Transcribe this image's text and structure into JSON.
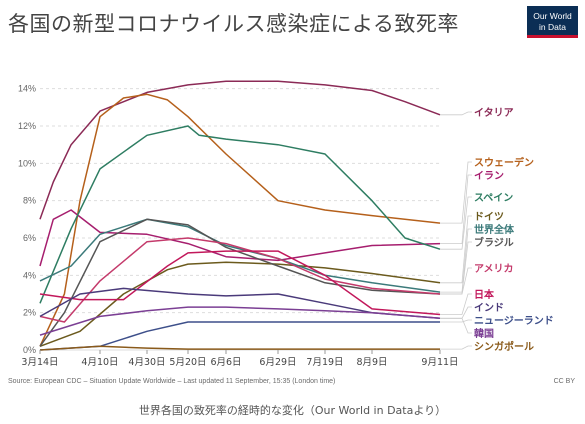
{
  "header": {
    "title": "各国の新型コロナウイルス感染症による致死率",
    "logo_line1": "Our World",
    "logo_line2": "in Data"
  },
  "footer": {
    "source": "Source: European CDC – Situation Update Worldwide – Last updated 11 September, 15:35 (London time)",
    "license": "CC BY",
    "caption": "世界各国の致死率の経時的な変化（Our World in Dataより）"
  },
  "chart_data": {
    "type": "line",
    "x_ticks": [
      "3月14日",
      "4月10日",
      "4月30日",
      "5月20日",
      "6月6日",
      "6月29日",
      "7月19日",
      "8月9日",
      "9月11日"
    ],
    "y_ticks": [
      "0%",
      "2%",
      "4%",
      "6%",
      "8%",
      "10%",
      "12%",
      "14%"
    ],
    "ylim": [
      0,
      15
    ],
    "grid": true,
    "series": [
      {
        "name": "イタリア",
        "color": "#8b2a56",
        "x": [
          "2020-03-14",
          "2020-03-20",
          "2020-03-28",
          "2020-04-10",
          "2020-04-30",
          "2020-05-20",
          "2020-06-06",
          "2020-06-29",
          "2020-07-19",
          "2020-08-09",
          "2020-08-25",
          "2020-09-11"
        ],
        "values": [
          7.0,
          9.0,
          11.0,
          12.8,
          13.8,
          14.2,
          14.4,
          14.4,
          14.2,
          13.9,
          13.3,
          12.6
        ]
      },
      {
        "name": "スウェーデン",
        "color": "#b5601b",
        "x": [
          "2020-03-14",
          "2020-03-25",
          "2020-04-01",
          "2020-04-10",
          "2020-04-20",
          "2020-04-30",
          "2020-05-10",
          "2020-05-20",
          "2020-06-06",
          "2020-06-29",
          "2020-07-19",
          "2020-08-09",
          "2020-09-11"
        ],
        "values": [
          0.2,
          3.0,
          8.0,
          12.5,
          13.5,
          13.7,
          13.4,
          12.5,
          10.5,
          8.0,
          7.5,
          7.2,
          6.8
        ]
      },
      {
        "name": "イラン",
        "color": "#a61e6e",
        "x": [
          "2020-03-14",
          "2020-03-20",
          "2020-03-28",
          "2020-04-10",
          "2020-04-30",
          "2020-05-20",
          "2020-06-06",
          "2020-06-29",
          "2020-07-19",
          "2020-08-09",
          "2020-09-11"
        ],
        "values": [
          4.5,
          7.0,
          7.5,
          6.3,
          6.2,
          5.7,
          5.0,
          4.8,
          5.2,
          5.6,
          5.7
        ]
      },
      {
        "name": "スペイン",
        "color": "#2e7d62",
        "x": [
          "2020-03-14",
          "2020-03-28",
          "2020-04-10",
          "2020-04-30",
          "2020-05-20",
          "2020-05-25",
          "2020-06-06",
          "2020-06-29",
          "2020-07-19",
          "2020-08-09",
          "2020-08-25",
          "2020-09-11"
        ],
        "values": [
          2.5,
          6.5,
          9.7,
          11.5,
          12.0,
          11.5,
          11.3,
          11.0,
          10.5,
          8.0,
          6.0,
          5.4
        ]
      },
      {
        "name": "ドイツ",
        "color": "#6b5a1d",
        "x": [
          "2020-03-14",
          "2020-04-01",
          "2020-04-20",
          "2020-05-10",
          "2020-05-20",
          "2020-06-06",
          "2020-06-29",
          "2020-07-19",
          "2020-08-09",
          "2020-09-11"
        ],
        "values": [
          0.2,
          1.0,
          3.0,
          4.3,
          4.6,
          4.7,
          4.6,
          4.4,
          4.1,
          3.6
        ]
      },
      {
        "name": "世界全体",
        "color": "#3b7a7a",
        "x": [
          "2020-03-14",
          "2020-03-28",
          "2020-04-10",
          "2020-04-30",
          "2020-05-20",
          "2020-06-06",
          "2020-06-29",
          "2020-07-19",
          "2020-08-09",
          "2020-09-11"
        ],
        "values": [
          3.7,
          4.5,
          6.2,
          7.0,
          6.6,
          5.6,
          4.9,
          4.0,
          3.6,
          3.1
        ]
      },
      {
        "name": "ブラジル",
        "color": "#555555",
        "x": [
          "2020-03-14",
          "2020-03-25",
          "2020-04-10",
          "2020-04-30",
          "2020-05-20",
          "2020-06-06",
          "2020-06-29",
          "2020-07-19",
          "2020-08-09",
          "2020-09-11"
        ],
        "values": [
          0.2,
          2.0,
          5.8,
          7.0,
          6.7,
          5.5,
          4.5,
          3.6,
          3.2,
          3.0
        ]
      },
      {
        "name": "アメリカ",
        "color": "#c43a6b",
        "x": [
          "2020-03-14",
          "2020-03-25",
          "2020-04-10",
          "2020-04-30",
          "2020-05-20",
          "2020-06-06",
          "2020-06-29",
          "2020-07-19",
          "2020-08-09",
          "2020-09-11"
        ],
        "values": [
          1.8,
          1.5,
          3.7,
          5.8,
          6.0,
          5.7,
          4.9,
          3.8,
          3.3,
          3.0
        ]
      },
      {
        "name": "日本",
        "color": "#c2185b",
        "x": [
          "2020-03-14",
          "2020-04-01",
          "2020-04-20",
          "2020-05-10",
          "2020-05-20",
          "2020-06-06",
          "2020-06-29",
          "2020-07-19",
          "2020-08-09",
          "2020-09-11"
        ],
        "values": [
          3.0,
          2.7,
          2.7,
          4.5,
          5.2,
          5.3,
          5.3,
          4.0,
          2.2,
          1.9
        ]
      },
      {
        "name": "インド",
        "color": "#4a3a7a",
        "x": [
          "2020-03-14",
          "2020-04-01",
          "2020-04-20",
          "2020-05-20",
          "2020-06-06",
          "2020-06-29",
          "2020-07-19",
          "2020-08-09",
          "2020-09-11"
        ],
        "values": [
          1.8,
          3.0,
          3.3,
          3.0,
          2.9,
          3.0,
          2.5,
          2.0,
          1.7
        ]
      },
      {
        "name": "ニュージーランド",
        "color": "#3d4f8a",
        "x": [
          "2020-03-14",
          "2020-04-10",
          "2020-04-30",
          "2020-05-20",
          "2020-06-06",
          "2020-06-29",
          "2020-07-19",
          "2020-08-09",
          "2020-09-11"
        ],
        "values": [
          0.0,
          0.2,
          1.0,
          1.5,
          1.5,
          1.5,
          1.5,
          1.5,
          1.5
        ]
      },
      {
        "name": "韓国",
        "color": "#7b3f94",
        "x": [
          "2020-03-14",
          "2020-04-10",
          "2020-04-30",
          "2020-05-20",
          "2020-06-06",
          "2020-06-29",
          "2020-07-19",
          "2020-08-09",
          "2020-09-11"
        ],
        "values": [
          0.8,
          1.8,
          2.1,
          2.3,
          2.3,
          2.2,
          2.1,
          2.0,
          1.7
        ]
      },
      {
        "name": "シンガポール",
        "color": "#8a5a1a",
        "x": [
          "2020-03-14",
          "2020-04-10",
          "2020-04-30",
          "2020-05-20",
          "2020-06-06",
          "2020-06-29",
          "2020-07-19",
          "2020-08-09",
          "2020-09-11"
        ],
        "values": [
          0.0,
          0.2,
          0.1,
          0.05,
          0.05,
          0.05,
          0.05,
          0.05,
          0.05
        ]
      }
    ]
  }
}
